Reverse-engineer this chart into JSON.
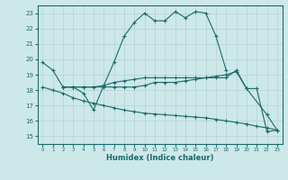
{
  "xlabel": "Humidex (Indice chaleur)",
  "xlim": [
    -0.5,
    23.5
  ],
  "ylim": [
    14.5,
    23.5
  ],
  "yticks": [
    15,
    16,
    17,
    18,
    19,
    20,
    21,
    22,
    23
  ],
  "xticks": [
    0,
    1,
    2,
    3,
    4,
    5,
    6,
    7,
    8,
    9,
    10,
    11,
    12,
    13,
    14,
    15,
    16,
    17,
    18,
    19,
    20,
    21,
    22,
    23
  ],
  "background_color": "#cde8e8",
  "grid_color": "#b8d4d4",
  "line_color": "#1a6b6b",
  "lines": [
    {
      "x": [
        0,
        1,
        2,
        3,
        4,
        5,
        6,
        7,
        8,
        9,
        10,
        11,
        12,
        13,
        14,
        15,
        16,
        17,
        18
      ],
      "y": [
        19.8,
        19.3,
        18.2,
        18.2,
        17.8,
        16.7,
        18.3,
        19.8,
        21.5,
        22.4,
        23.0,
        22.5,
        22.5,
        23.1,
        22.7,
        23.1,
        23.0,
        21.5,
        19.3
      ]
    },
    {
      "x": [
        2,
        3,
        4,
        5,
        6,
        7,
        8,
        9,
        10,
        11,
        12,
        13,
        14,
        15,
        16,
        17,
        18,
        19,
        20,
        21,
        22,
        23
      ],
      "y": [
        18.2,
        18.2,
        18.2,
        18.2,
        18.2,
        18.2,
        18.2,
        18.2,
        18.3,
        18.5,
        18.5,
        18.5,
        18.6,
        18.7,
        18.8,
        18.9,
        19.0,
        19.2,
        18.1,
        18.1,
        15.3,
        15.4
      ]
    },
    {
      "x": [
        2,
        3,
        4,
        5,
        6,
        7,
        8,
        9,
        10,
        11,
        12,
        13,
        14,
        15,
        16,
        17,
        18,
        19,
        20,
        22,
        23
      ],
      "y": [
        18.2,
        18.2,
        18.2,
        18.2,
        18.3,
        18.5,
        18.6,
        18.7,
        18.8,
        18.8,
        18.8,
        18.8,
        18.8,
        18.8,
        18.8,
        18.8,
        18.8,
        19.3,
        18.1,
        16.4,
        15.4
      ]
    },
    {
      "x": [
        0,
        1,
        2,
        3,
        4,
        5,
        6,
        7,
        8,
        9,
        10,
        11,
        12,
        13,
        14,
        15,
        16,
        17,
        18,
        19,
        20,
        21,
        22,
        23
      ],
      "y": [
        18.2,
        18.0,
        17.8,
        17.5,
        17.3,
        17.15,
        17.0,
        16.85,
        16.7,
        16.6,
        16.5,
        16.45,
        16.4,
        16.35,
        16.3,
        16.25,
        16.2,
        16.1,
        16.0,
        15.9,
        15.8,
        15.65,
        15.55,
        15.4
      ]
    }
  ]
}
